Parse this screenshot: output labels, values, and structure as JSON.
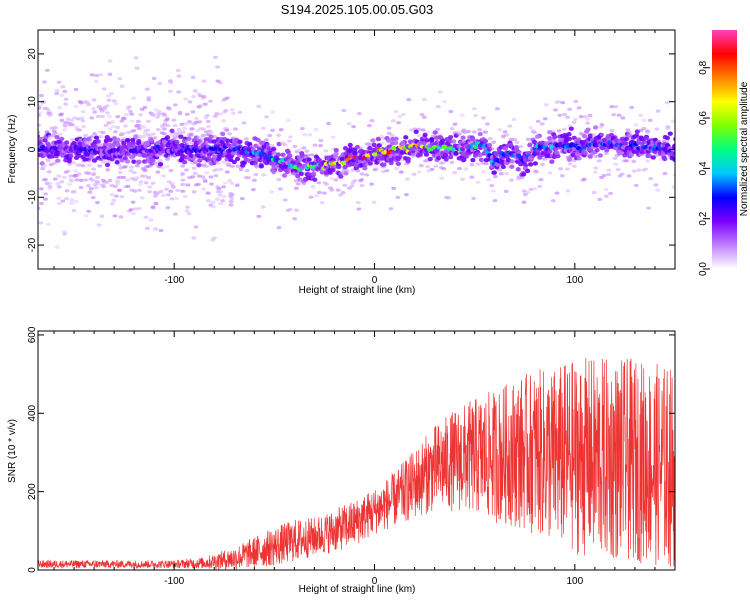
{
  "title": "S194.2025.105.00.05.G03",
  "chart_data": [
    {
      "type": "heatmap",
      "xlabel": "Height of straight line (km)",
      "ylabel": "Frequency (Hz)",
      "xlim": [
        -168,
        150
      ],
      "ylim": [
        -25,
        25
      ],
      "xticks": [
        -100,
        0,
        100
      ],
      "yticks": [
        -20,
        -10,
        0,
        10,
        20
      ],
      "colorbar": {
        "label": "Normalized spectral amplitude",
        "range": [
          0.0,
          0.95
        ],
        "ticks": [
          0.0,
          0.2,
          0.4,
          0.6,
          0.8
        ],
        "colors": [
          "#ffffff",
          "#c080ff",
          "#7a00ff",
          "#0000ff",
          "#00c8ff",
          "#00ff80",
          "#80ff00",
          "#ffff00",
          "#ff8000",
          "#ff0000",
          "#ff40c0"
        ]
      },
      "ridge": {
        "x": [
          -168,
          -140,
          -100,
          -70,
          -55,
          -45,
          -35,
          -20,
          -10,
          0,
          10,
          20,
          30,
          40,
          50,
          55,
          60,
          65,
          70,
          75,
          80,
          90,
          100,
          110,
          120,
          130,
          140,
          150
        ],
        "frequency": [
          0,
          0,
          0,
          0,
          -1,
          -3,
          -4,
          -3,
          -1.5,
          -1,
          0,
          0.5,
          0.5,
          0,
          0.5,
          1,
          -3,
          -1,
          -1,
          -3,
          0,
          1,
          0.5,
          1,
          1,
          1,
          0.5,
          0
        ],
        "peak_amplitude": [
          0.3,
          0.3,
          0.3,
          0.35,
          0.4,
          0.5,
          0.6,
          0.75,
          0.85,
          0.9,
          0.85,
          0.8,
          0.6,
          0.55,
          0.5,
          0.4,
          0.4,
          0.35,
          0.35,
          0.35,
          0.4,
          0.4,
          0.35,
          0.35,
          0.35,
          0.35,
          0.35,
          0.3
        ]
      },
      "noise_region_x": [
        -168,
        -70
      ]
    },
    {
      "type": "line",
      "xlabel": "Height of straight line (km)",
      "ylabel": "SNR (10 * v/v)",
      "xlim": [
        -168,
        150
      ],
      "ylim": [
        0,
        610
      ],
      "xticks": [
        -100,
        0,
        100
      ],
      "yticks": [
        0,
        200,
        400,
        600
      ],
      "color": "#ee3333",
      "envelope": {
        "x": [
          -168,
          -100,
          -85,
          -70,
          -60,
          -50,
          -40,
          -30,
          -20,
          -10,
          0,
          10,
          20,
          30,
          40,
          50,
          60,
          70,
          80,
          90,
          100,
          110,
          120,
          130,
          140,
          150
        ],
        "mean": [
          15,
          15,
          18,
          30,
          45,
          60,
          75,
          85,
          100,
          120,
          150,
          180,
          220,
          260,
          280,
          290,
          290,
          300,
          300,
          290,
          290,
          285,
          280,
          280,
          270,
          260
        ],
        "spread": [
          10,
          10,
          15,
          30,
          40,
          50,
          55,
          50,
          55,
          60,
          60,
          70,
          90,
          110,
          130,
          150,
          170,
          190,
          210,
          230,
          250,
          260,
          260,
          260,
          260,
          260
        ]
      }
    }
  ]
}
